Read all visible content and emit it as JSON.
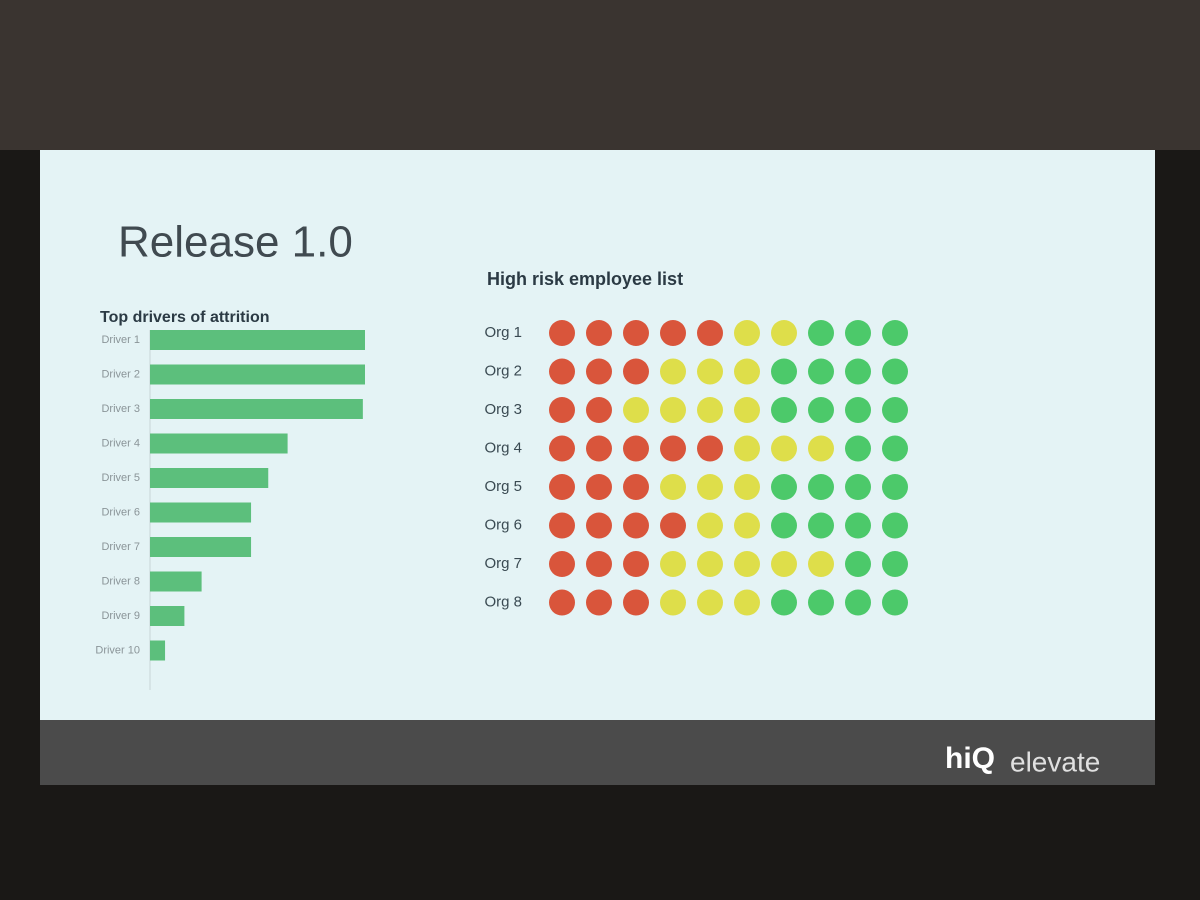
{
  "slide": {
    "title": "Release 1.0",
    "logo": "hiQ",
    "tagline": "elevate"
  },
  "chart_data": [
    {
      "type": "bar",
      "orientation": "horizontal",
      "title": "Top drivers of attrition",
      "categories": [
        "Driver 1",
        "Driver 2",
        "Driver 3",
        "Driver 4",
        "Driver 5",
        "Driver 6",
        "Driver 7",
        "Driver 8",
        "Driver 9",
        "Driver 10"
      ],
      "values": [
        100,
        100,
        99,
        64,
        55,
        47,
        47,
        24,
        16,
        7
      ],
      "color": "#5cbf7c",
      "xlim": [
        0,
        100
      ]
    },
    {
      "type": "dot-grid",
      "title": "High risk employee list",
      "categories": [
        "Org 1",
        "Org 2",
        "Org 3",
        "Org 4",
        "Org 5",
        "Org 6",
        "Org 7",
        "Org 8"
      ],
      "series": [
        {
          "color": "#d9553b",
          "values": [
            5,
            3,
            2,
            5,
            3,
            4,
            3,
            3
          ]
        },
        {
          "color": "#dede4a",
          "values": [
            2,
            3,
            4,
            3,
            3,
            2,
            5,
            3
          ]
        },
        {
          "color": "#4cc96a",
          "values": [
            3,
            4,
            4,
            2,
            4,
            4,
            2,
            4
          ]
        }
      ]
    }
  ]
}
